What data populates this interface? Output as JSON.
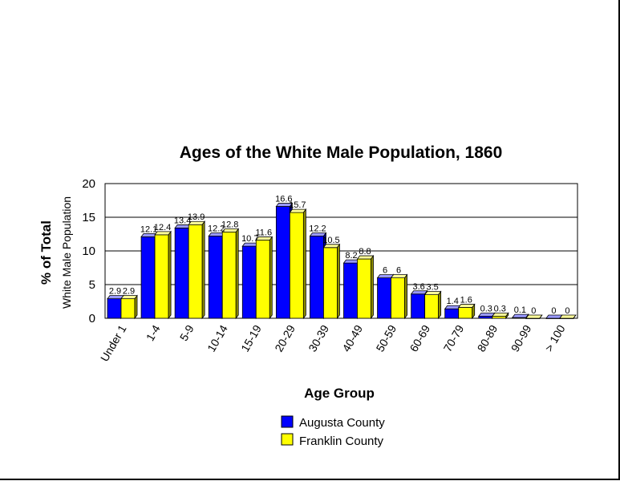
{
  "chart_data": {
    "type": "bar",
    "title": "Ages of the  White Male Population, 1860",
    "ylabel": "% of Total",
    "ylabel_sub": "White Male Population",
    "xlabel": "Age Group",
    "ylim": [
      0,
      20
    ],
    "yticks": [
      0,
      5,
      10,
      15,
      20
    ],
    "grid": true,
    "legend_position": "bottom-center",
    "categories": [
      "Under 1",
      "1-4",
      "5-9",
      "10-14",
      "15-19",
      "20-29",
      "30-39",
      "40-49",
      "50-59",
      "60-69",
      "70-79",
      "80-89",
      "90-99",
      "> 100"
    ],
    "series": [
      {
        "name": "Augusta County",
        "color": "#0000ff",
        "values": [
          2.9,
          12.1,
          13.4,
          12.2,
          10.7,
          16.6,
          12.2,
          8.2,
          6,
          3.6,
          1.4,
          0.3,
          0.1,
          0
        ],
        "labels": [
          "2.9",
          "12.1",
          "13.4",
          "12.2",
          "10.7",
          "16.6",
          "12.2",
          "8.2",
          "6",
          "3.6",
          "1.4",
          "0.3",
          "0.1",
          "0"
        ]
      },
      {
        "name": "Franklin County",
        "color": "#ffff00",
        "values": [
          2.9,
          12.4,
          13.9,
          12.8,
          11.6,
          15.7,
          10.5,
          8.8,
          6,
          3.5,
          1.6,
          0.3,
          0,
          0
        ],
        "labels": [
          "2.9",
          "12.4",
          "13.9",
          "12.8",
          "11.6",
          "15.7",
          "10.5",
          "8.8",
          "6",
          "3.5",
          "1.6",
          "0.3",
          "0",
          "0"
        ]
      }
    ]
  }
}
